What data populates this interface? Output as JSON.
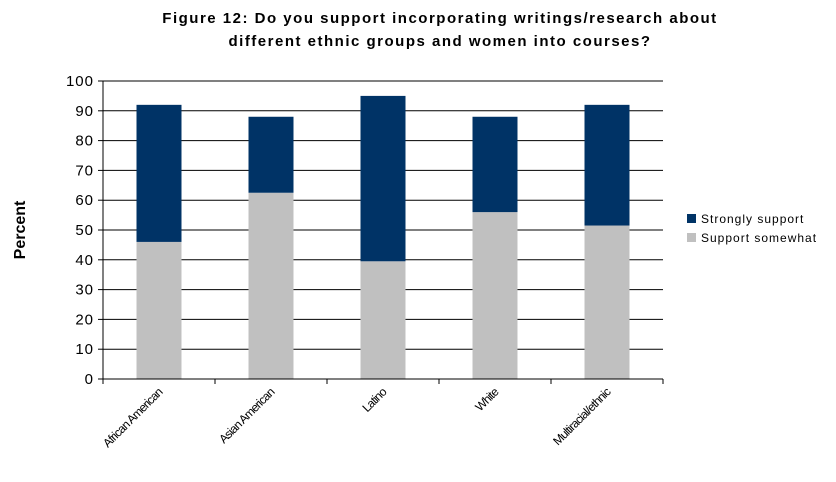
{
  "chart_data": {
    "type": "bar",
    "stacked": true,
    "title": [
      "Figure 12:  Do you support incorporating writings/research about",
      "different ethnic groups and women into courses?"
    ],
    "ylabel": "Percent",
    "xlabel": "",
    "categories": [
      "African American",
      "Asian American",
      "Latino",
      "White",
      "Multiracial/ethnic"
    ],
    "series": [
      {
        "name": "Support somewhat",
        "color": "#c0c0c0",
        "values": [
          46,
          62.5,
          39.5,
          56,
          51.5
        ]
      },
      {
        "name": "Strongly support",
        "color": "#003366",
        "values": [
          46,
          25.5,
          55.5,
          32,
          40.5
        ]
      }
    ],
    "ylim": [
      0,
      100
    ],
    "yticks": [
      "0",
      "10",
      "20",
      "30",
      "40",
      "50",
      "60",
      "70",
      "80",
      "90",
      "100"
    ],
    "grid": true,
    "legend": {
      "position": "right",
      "entries": [
        {
          "label": "Strongly support",
          "color": "#003366"
        },
        {
          "label": "Support somewhat",
          "color": "#c0c0c0"
        }
      ]
    }
  }
}
